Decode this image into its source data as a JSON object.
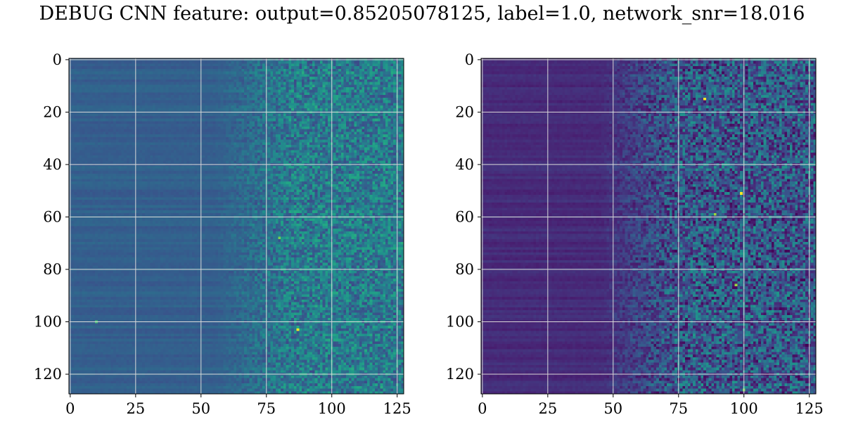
{
  "figure": {
    "title": "DEBUG CNN feature: output=0.85205078125, label=1.0, network_snr=18.016"
  },
  "chart_data": [
    {
      "type": "heatmap",
      "colormap": "viridis",
      "rows": 128,
      "cols": 128,
      "xlim": [
        -0.5,
        127.5
      ],
      "ylim": [
        127.5,
        -0.5
      ],
      "x_ticks": [
        0,
        25,
        50,
        75,
        100,
        125
      ],
      "y_ticks": [
        0,
        20,
        40,
        60,
        80,
        100,
        120
      ],
      "x_tick_labels": [
        "0",
        "25",
        "50",
        "75",
        "100",
        "125"
      ],
      "y_tick_labels": [
        "0",
        "20",
        "40",
        "60",
        "80",
        "100",
        "120"
      ],
      "grid": true,
      "value_profile": {
        "base_low": 0.26,
        "base_high": 0.32,
        "ramp_start_col": 55,
        "ramp_end_col": 85,
        "noise_amplitude": 0.22
      },
      "hotspots": [
        {
          "row": 103,
          "col": 87,
          "value": 1.0
        },
        {
          "row": 68,
          "col": 80,
          "value": 0.8
        },
        {
          "row": 100,
          "col": 10,
          "value": 0.7
        }
      ]
    },
    {
      "type": "heatmap",
      "colormap": "viridis",
      "rows": 128,
      "cols": 128,
      "xlim": [
        -0.5,
        127.5
      ],
      "ylim": [
        127.5,
        -0.5
      ],
      "x_ticks": [
        0,
        25,
        50,
        75,
        100,
        125
      ],
      "y_ticks": [
        0,
        20,
        40,
        60,
        80,
        100,
        120
      ],
      "x_tick_labels": [
        "0",
        "25",
        "50",
        "75",
        "100",
        "125"
      ],
      "y_tick_labels": [
        "0",
        "20",
        "40",
        "60",
        "80",
        "100",
        "120"
      ],
      "grid": true,
      "value_profile": {
        "base_low": 0.08,
        "base_high": 0.14,
        "ramp_start_col": 45,
        "ramp_end_col": 75,
        "noise_amplitude": 0.3
      },
      "hotspots": [
        {
          "row": 15,
          "col": 85,
          "value": 1.0
        },
        {
          "row": 51,
          "col": 99,
          "value": 1.0
        },
        {
          "row": 59,
          "col": 89,
          "value": 0.85
        },
        {
          "row": 86,
          "col": 97,
          "value": 0.85
        },
        {
          "row": 126,
          "col": 100,
          "value": 0.8
        }
      ]
    }
  ]
}
